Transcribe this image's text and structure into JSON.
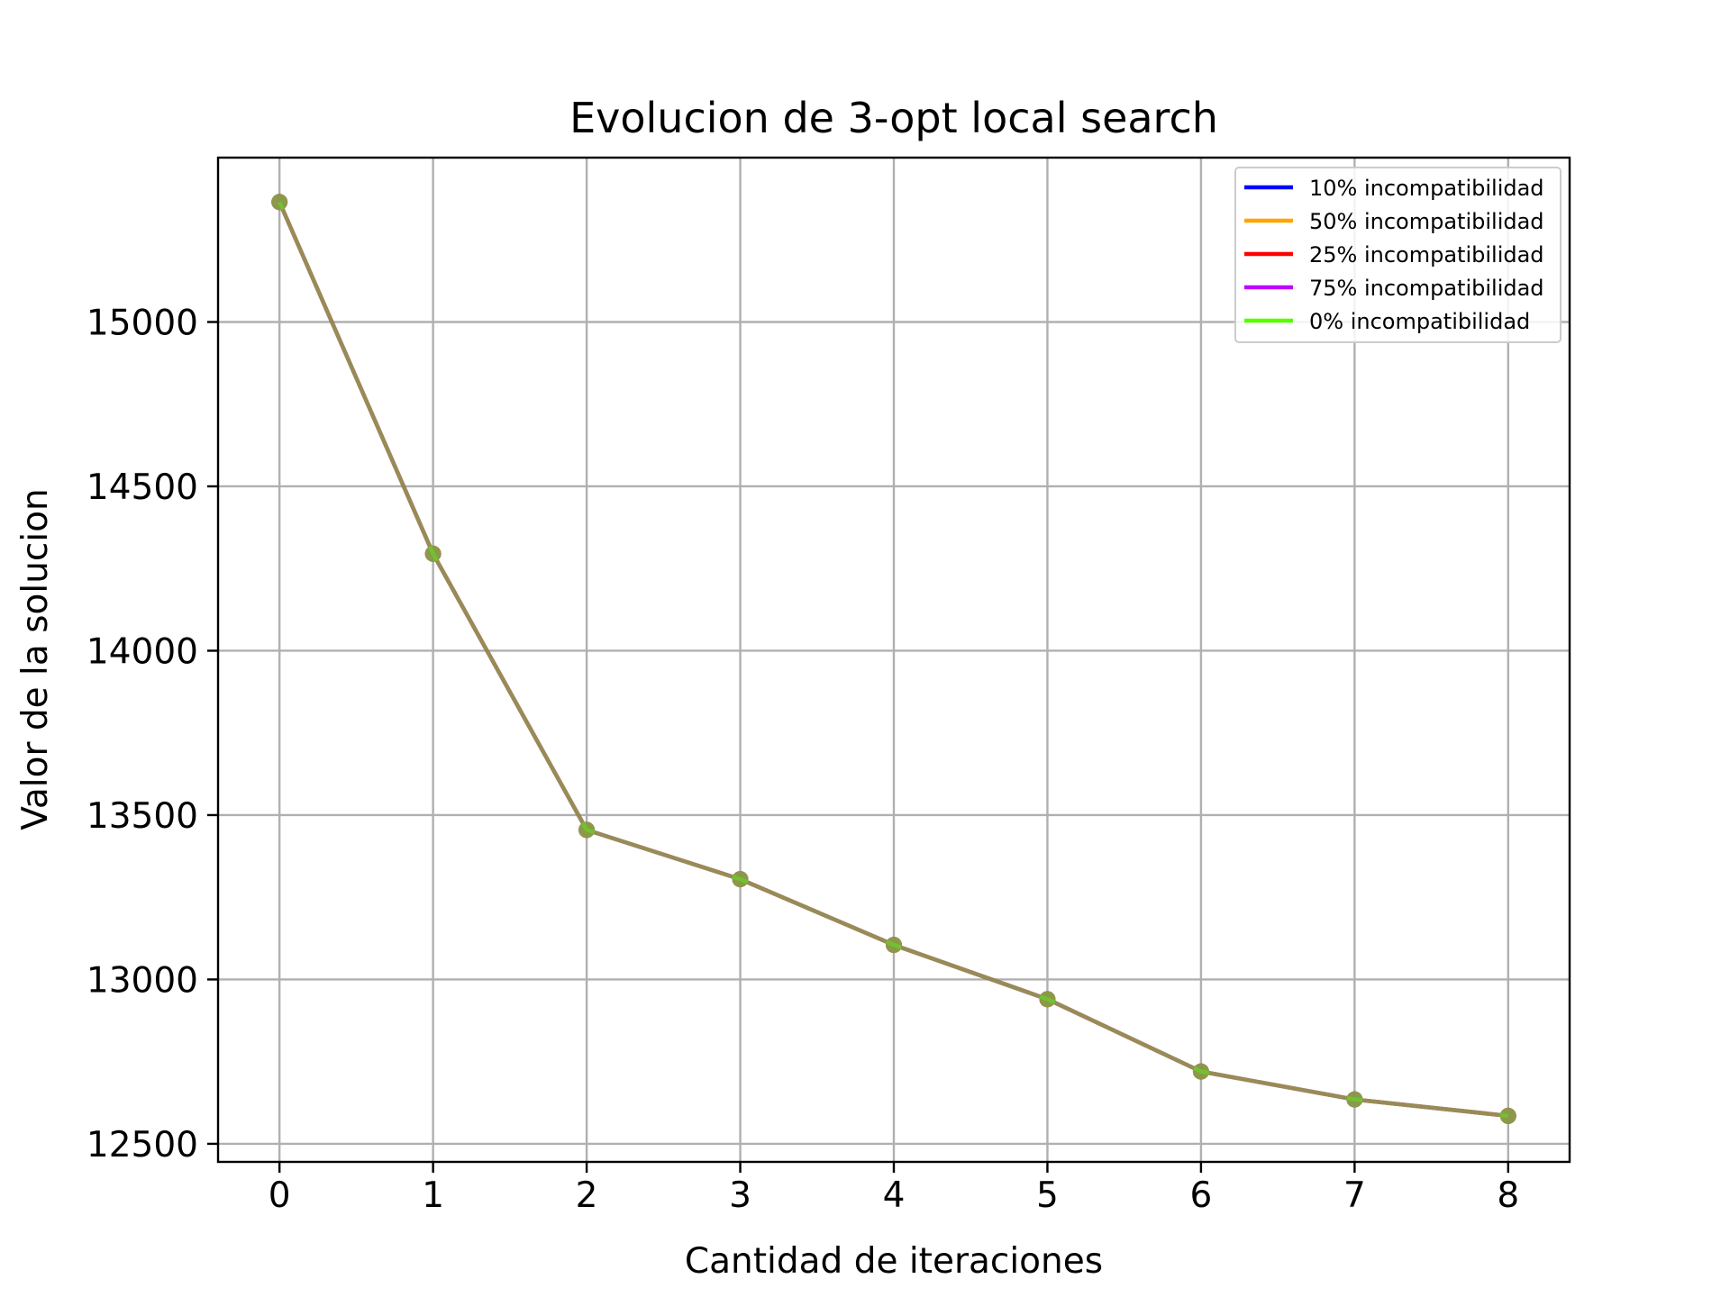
{
  "chart_data": {
    "type": "line",
    "title": "Evolucion de 3-opt local search",
    "xlabel": "Cantidad de iteraciones",
    "ylabel": "Valor de la solucion",
    "x": [
      0,
      1,
      2,
      3,
      4,
      5,
      6,
      7,
      8
    ],
    "xlim": [
      -0.4,
      8.4
    ],
    "ylim": [
      12445,
      15500
    ],
    "xticks": [
      0,
      1,
      2,
      3,
      4,
      5,
      6,
      7,
      8
    ],
    "yticks": [
      12500,
      13000,
      13500,
      14000,
      14500,
      15000
    ],
    "grid": true,
    "legend_position": "top-right",
    "series": [
      {
        "name": "10% incompatibilidad",
        "color": "#0000ff",
        "values": [
          15365,
          14295,
          13455,
          13305,
          13105,
          12940,
          12720,
          12635,
          12585
        ]
      },
      {
        "name": "50% incompatibilidad",
        "color": "#ffa500",
        "values": [
          15365,
          14295,
          13455,
          13305,
          13105,
          12940,
          12720,
          12635,
          12585
        ]
      },
      {
        "name": "25% incompatibilidad",
        "color": "#ff0000",
        "values": [
          15365,
          14295,
          13455,
          13305,
          13105,
          12940,
          12720,
          12635,
          12585
        ]
      },
      {
        "name": "75% incompatibilidad",
        "color": "#bf00ff",
        "values": [
          15365,
          14295,
          13455,
          13305,
          13105,
          12940,
          12720,
          12635,
          12585
        ]
      },
      {
        "name": "0% incompatibilidad",
        "color": "#55ff00",
        "values": [
          15365,
          14295,
          13455,
          13305,
          13105,
          12940,
          12720,
          12635,
          12585
        ]
      }
    ]
  }
}
